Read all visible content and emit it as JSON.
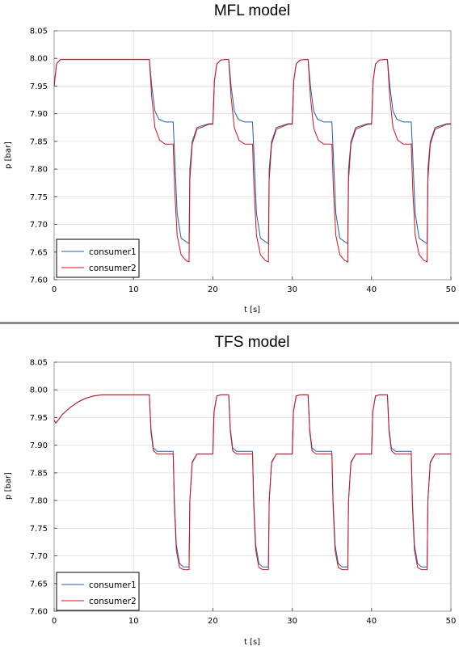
{
  "chart_data": [
    {
      "type": "line",
      "title": "MFL model",
      "xlabel": "t [s]",
      "ylabel": "p  [bar]",
      "xlim": [
        0,
        50
      ],
      "ylim": [
        7.6,
        8.05
      ],
      "x_ticks": [
        "0",
        "10",
        "20",
        "30",
        "40",
        "50"
      ],
      "y_ticks": [
        "7.60",
        "7.65",
        "7.70",
        "7.75",
        "7.80",
        "7.85",
        "7.90",
        "7.95",
        "8.00",
        "8.05"
      ],
      "grid": true,
      "legend_position": "bottom-left",
      "series": [
        {
          "name": "consumer1",
          "color": "#1f5fa8",
          "x": [
            0,
            0.3,
            0.8,
            12.0,
            12.3,
            12.7,
            13.2,
            14.0,
            15.0,
            15.2,
            15.5,
            16.0,
            17.0,
            17.1,
            17.4,
            18.0,
            19.5,
            20.0,
            20.2,
            20.5,
            21.0,
            21.6,
            22.0,
            22.3,
            22.7,
            23.2,
            24.0,
            25.0,
            25.2,
            25.5,
            26.0,
            27.0,
            27.1,
            27.4,
            28.0,
            29.5,
            30.0,
            30.2,
            30.5,
            31.0,
            31.6,
            32.0,
            32.3,
            32.7,
            33.2,
            34.0,
            35.0,
            35.2,
            35.5,
            36.0,
            37.0,
            37.1,
            37.4,
            38.0,
            39.5,
            40.0,
            40.2,
            40.5,
            41.0,
            41.6,
            42.0,
            42.3,
            42.7,
            43.2,
            44.0,
            45.0,
            45.2,
            45.5,
            46.0,
            47.0,
            47.1,
            47.4,
            48.0,
            49.5,
            50.0
          ],
          "y": [
            7.95,
            7.99,
            7.998,
            7.998,
            7.95,
            7.905,
            7.89,
            7.885,
            7.885,
            7.82,
            7.72,
            7.675,
            7.665,
            7.8,
            7.85,
            7.875,
            7.882,
            7.882,
            7.96,
            7.99,
            7.997,
            7.998,
            7.998,
            7.95,
            7.905,
            7.89,
            7.885,
            7.885,
            7.82,
            7.72,
            7.675,
            7.665,
            7.8,
            7.85,
            7.875,
            7.882,
            7.882,
            7.96,
            7.99,
            7.997,
            7.998,
            7.998,
            7.95,
            7.905,
            7.89,
            7.885,
            7.885,
            7.82,
            7.72,
            7.675,
            7.665,
            7.8,
            7.85,
            7.875,
            7.882,
            7.882,
            7.96,
            7.99,
            7.997,
            7.998,
            7.998,
            7.95,
            7.905,
            7.89,
            7.885,
            7.885,
            7.82,
            7.72,
            7.675,
            7.665,
            7.8,
            7.85,
            7.875,
            7.882,
            7.882
          ]
        },
        {
          "name": "consumer2",
          "color": "#d0121b",
          "x": [
            0,
            0.3,
            0.8,
            12.0,
            12.3,
            12.7,
            13.3,
            14.0,
            15.0,
            15.2,
            15.5,
            16.0,
            16.6,
            17.0,
            17.1,
            17.4,
            18.0,
            19.5,
            20.0,
            20.2,
            20.5,
            21.0,
            21.6,
            22.0,
            22.3,
            22.7,
            23.3,
            24.0,
            25.0,
            25.2,
            25.5,
            26.0,
            26.6,
            27.0,
            27.1,
            27.4,
            28.0,
            29.5,
            30.0,
            30.2,
            30.5,
            31.0,
            31.6,
            32.0,
            32.3,
            32.7,
            33.3,
            34.0,
            35.0,
            35.2,
            35.5,
            36.0,
            36.6,
            37.0,
            37.1,
            37.4,
            38.0,
            39.5,
            40.0,
            40.2,
            40.5,
            41.0,
            41.6,
            42.0,
            42.3,
            42.7,
            43.3,
            44.0,
            45.0,
            45.2,
            45.5,
            46.0,
            46.6,
            47.0,
            47.1,
            47.4,
            48.0,
            49.5,
            50.0
          ],
          "y": [
            7.95,
            7.99,
            7.998,
            7.998,
            7.93,
            7.875,
            7.852,
            7.845,
            7.845,
            7.76,
            7.68,
            7.645,
            7.635,
            7.632,
            7.78,
            7.845,
            7.872,
            7.881,
            7.881,
            7.96,
            7.99,
            7.997,
            7.998,
            7.998,
            7.93,
            7.875,
            7.852,
            7.845,
            7.845,
            7.76,
            7.68,
            7.645,
            7.635,
            7.632,
            7.78,
            7.845,
            7.872,
            7.881,
            7.881,
            7.96,
            7.99,
            7.997,
            7.998,
            7.998,
            7.93,
            7.875,
            7.852,
            7.845,
            7.845,
            7.76,
            7.68,
            7.645,
            7.635,
            7.632,
            7.78,
            7.845,
            7.872,
            7.881,
            7.881,
            7.96,
            7.99,
            7.997,
            7.998,
            7.998,
            7.93,
            7.875,
            7.852,
            7.845,
            7.845,
            7.76,
            7.68,
            7.645,
            7.635,
            7.632,
            7.78,
            7.845,
            7.872,
            7.881,
            7.881
          ]
        }
      ]
    },
    {
      "type": "line",
      "title": "TFS model",
      "xlabel": "t [s]",
      "ylabel": "p  [bar]",
      "xlim": [
        0,
        50
      ],
      "ylim": [
        7.6,
        8.05
      ],
      "x_ticks": [
        "0",
        "10",
        "20",
        "30",
        "40",
        "50"
      ],
      "y_ticks": [
        "7.60",
        "7.65",
        "7.70",
        "7.75",
        "7.80",
        "7.85",
        "7.90",
        "7.95",
        "8.00",
        "8.05"
      ],
      "grid": true,
      "legend_position": "bottom-left",
      "series": [
        {
          "name": "consumer1",
          "color": "#1f5fa8",
          "x": [
            0,
            0.2,
            0.5,
            1.0,
            2.0,
            3.0,
            4.0,
            5.0,
            6.0,
            7.0,
            12.0,
            12.2,
            12.5,
            13.0,
            15.0,
            15.15,
            15.4,
            15.8,
            16.3,
            17.0,
            17.1,
            17.4,
            18.0,
            20.0,
            20.15,
            20.5,
            21.0,
            22.0,
            22.2,
            22.5,
            23.0,
            25.0,
            25.15,
            25.4,
            25.8,
            26.3,
            27.0,
            27.1,
            27.4,
            28.0,
            30.0,
            30.15,
            30.5,
            31.0,
            32.0,
            32.2,
            32.5,
            33.0,
            35.0,
            35.15,
            35.4,
            35.8,
            36.3,
            37.0,
            37.1,
            37.4,
            38.0,
            40.0,
            40.15,
            40.5,
            41.0,
            42.0,
            42.2,
            42.5,
            43.0,
            45.0,
            45.15,
            45.4,
            45.8,
            46.3,
            47.0,
            47.1,
            47.4,
            48.0,
            50.0
          ],
          "y": [
            7.945,
            7.94,
            7.945,
            7.955,
            7.968,
            7.978,
            7.985,
            7.989,
            7.991,
            7.991,
            7.991,
            7.93,
            7.895,
            7.889,
            7.889,
            7.8,
            7.72,
            7.686,
            7.68,
            7.68,
            7.8,
            7.87,
            7.884,
            7.884,
            7.96,
            7.989,
            7.991,
            7.991,
            7.93,
            7.895,
            7.889,
            7.889,
            7.8,
            7.72,
            7.686,
            7.68,
            7.68,
            7.8,
            7.87,
            7.884,
            7.884,
            7.96,
            7.989,
            7.991,
            7.991,
            7.93,
            7.895,
            7.889,
            7.889,
            7.8,
            7.72,
            7.686,
            7.68,
            7.68,
            7.8,
            7.87,
            7.884,
            7.884,
            7.96,
            7.989,
            7.991,
            7.991,
            7.93,
            7.895,
            7.889,
            7.889,
            7.8,
            7.72,
            7.686,
            7.68,
            7.68,
            7.8,
            7.87,
            7.884,
            7.884
          ]
        },
        {
          "name": "consumer2",
          "color": "#d0121b",
          "x": [
            0,
            0.2,
            0.5,
            1.0,
            2.0,
            3.0,
            4.0,
            5.0,
            6.0,
            7.0,
            12.0,
            12.2,
            12.5,
            13.0,
            15.0,
            15.15,
            15.4,
            15.8,
            16.3,
            17.0,
            17.1,
            17.4,
            18.0,
            20.0,
            20.15,
            20.5,
            21.0,
            22.0,
            22.2,
            22.5,
            23.0,
            25.0,
            25.15,
            25.4,
            25.8,
            26.3,
            27.0,
            27.1,
            27.4,
            28.0,
            30.0,
            30.15,
            30.5,
            31.0,
            32.0,
            32.2,
            32.5,
            33.0,
            35.0,
            35.15,
            35.4,
            35.8,
            36.3,
            37.0,
            37.1,
            37.4,
            38.0,
            40.0,
            40.15,
            40.5,
            41.0,
            42.0,
            42.2,
            42.5,
            43.0,
            45.0,
            45.15,
            45.4,
            45.8,
            46.3,
            47.0,
            47.1,
            47.4,
            48.0,
            50.0
          ],
          "y": [
            7.945,
            7.94,
            7.945,
            7.955,
            7.968,
            7.978,
            7.985,
            7.989,
            7.991,
            7.991,
            7.991,
            7.925,
            7.89,
            7.884,
            7.884,
            7.79,
            7.71,
            7.679,
            7.675,
            7.675,
            7.8,
            7.868,
            7.884,
            7.884,
            7.96,
            7.989,
            7.991,
            7.991,
            7.925,
            7.89,
            7.884,
            7.884,
            7.79,
            7.71,
            7.679,
            7.675,
            7.675,
            7.8,
            7.868,
            7.884,
            7.884,
            7.96,
            7.989,
            7.991,
            7.991,
            7.925,
            7.89,
            7.884,
            7.884,
            7.79,
            7.71,
            7.679,
            7.675,
            7.675,
            7.8,
            7.868,
            7.884,
            7.884,
            7.96,
            7.989,
            7.991,
            7.991,
            7.925,
            7.89,
            7.884,
            7.884,
            7.79,
            7.71,
            7.679,
            7.675,
            7.675,
            7.8,
            7.868,
            7.884,
            7.884
          ]
        }
      ]
    }
  ]
}
